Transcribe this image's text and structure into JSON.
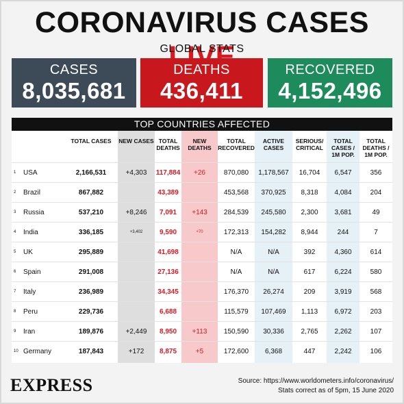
{
  "title": {
    "main": "CORONAVIRUS CASES ",
    "live": "LIVE"
  },
  "global_label": "GLOBAL STATS",
  "stats": {
    "cases": {
      "label": "CASES",
      "value": "8,035,681"
    },
    "deaths": {
      "label": "DEATHS",
      "value": "436,411"
    },
    "recovered": {
      "label": "RECOVERED",
      "value": "4,152,496"
    }
  },
  "table_title": "TOP COUNTRIES AFFECTED",
  "headers": [
    "TOTAL CASES",
    "NEW CASES",
    "TOTAL DEATHS",
    "NEW DEATHS",
    "TOTAL RECOVERED",
    "ACTIVE CASES",
    "SERIOUS/ CRITICAL",
    "TOTAL CASES / 1M POP.",
    "TOTAL DEATHS / 1M POP."
  ],
  "rows": [
    [
      "1",
      "USA",
      "2,166,531",
      "+4,303",
      "117,884",
      "+26",
      "870,080",
      "1,178,567",
      "16,704",
      "6,547",
      "356"
    ],
    [
      "2",
      "Brazil",
      "867,882",
      "",
      "43,389",
      "",
      "453,568",
      "370,925",
      "8,318",
      "4,084",
      "204"
    ],
    [
      "3",
      "Russia",
      "537,210",
      "+8,246",
      "7,091",
      "+143",
      "284,539",
      "245,580",
      "2,300",
      "3,681",
      "49"
    ],
    [
      "4",
      "India",
      "336,185",
      "+3,402",
      "9,590",
      "+70",
      "172,313",
      "154,282",
      "8,944",
      "244",
      "7"
    ],
    [
      "5",
      "UK",
      "295,889",
      "",
      "41,698",
      "",
      "N/A",
      "N/A",
      "392",
      "4,360",
      "614"
    ],
    [
      "6",
      "Spain",
      "291,008",
      "",
      "27,136",
      "",
      "N/A",
      "N/A",
      "617",
      "6,224",
      "580"
    ],
    [
      "7",
      "Italy",
      "236,989",
      "",
      "34,345",
      "",
      "176,370",
      "26,274",
      "209",
      "3,919",
      "568"
    ],
    [
      "8",
      "Peru",
      "229,736",
      "",
      "6,688",
      "",
      "115,579",
      "107,469",
      "1,113",
      "6,972",
      "203"
    ],
    [
      "9",
      "Iran",
      "189,876",
      "+2,449",
      "8,950",
      "+113",
      "150,590",
      "30,336",
      "2,765",
      "2,262",
      "107"
    ],
    [
      "10",
      "Germany",
      "187,843",
      "+172",
      "8,875",
      "+5",
      "172,600",
      "6,368",
      "447",
      "2,242",
      "106"
    ]
  ],
  "small_values": [
    "+3,402",
    "+70"
  ],
  "logo": "EXPRESS",
  "source": {
    "line1": "Source: https://www.worldometers.info/coronavirus/",
    "line2": "Stats correct as of 5pm, 15 June 2020"
  },
  "colors": {
    "cases": "#3d4a57",
    "deaths": "#c8181e",
    "recovered": "#1d8b5b",
    "accent_red": "#d71a21"
  }
}
